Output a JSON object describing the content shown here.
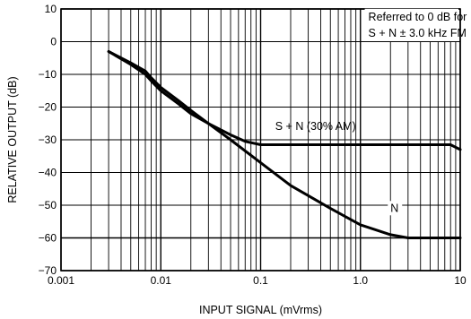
{
  "chart_data": {
    "type": "line",
    "title": "",
    "xlabel": "INPUT SIGNAL (mVrms)",
    "ylabel": "RELATIVE OUTPUT (dB)",
    "x_scale": "log",
    "xlim": [
      0.001,
      10
    ],
    "ylim": [
      -70,
      10
    ],
    "x_ticks": [
      0.001,
      0.01,
      0.1,
      1.0,
      10
    ],
    "x_tick_labels": [
      "0.001",
      "0.01",
      "0.1",
      "1.0",
      "10"
    ],
    "y_ticks": [
      10,
      0,
      -10,
      -20,
      -30,
      -40,
      -50,
      -60,
      -70
    ],
    "y_tick_labels": [
      "10",
      "0",
      "−10",
      "−20",
      "−30",
      "−40",
      "−50",
      "−60",
      "−70"
    ],
    "grid": true,
    "series": [
      {
        "name": "S + N (30% AM)",
        "x": [
          0.003,
          0.005,
          0.007,
          0.008,
          0.01,
          0.015,
          0.02,
          0.03,
          0.05,
          0.07,
          0.1,
          0.2,
          0.5,
          1.0,
          2.0,
          5.0,
          8.0,
          10
        ],
        "y": [
          -3,
          -7,
          -10,
          -12,
          -15,
          -19,
          -22,
          -25,
          -28.5,
          -30.5,
          -31.5,
          -31.5,
          -31.5,
          -31.5,
          -31.5,
          -31.5,
          -31.5,
          -33
        ]
      },
      {
        "name": "N",
        "x": [
          0.003,
          0.005,
          0.007,
          0.008,
          0.01,
          0.015,
          0.02,
          0.03,
          0.05,
          0.1,
          0.2,
          0.5,
          1.0,
          2.0,
          3.0,
          5.0,
          10
        ],
        "y": [
          -3,
          -6.5,
          -9,
          -11,
          -14,
          -18,
          -21,
          -25,
          -30,
          -37,
          -44,
          -51,
          -56,
          -59,
          -60,
          -60,
          -60
        ]
      }
    ],
    "annotations": [
      {
        "text": "Referred to 0 dB for",
        "x": 1.2,
        "y": 6.5
      },
      {
        "text": "S + N ± 3.0 kHz FM",
        "x": 1.2,
        "y": 1.5
      },
      {
        "text": "S + N (30% AM)",
        "x": 0.14,
        "y": -27
      },
      {
        "text": "N",
        "x": 2.0,
        "y": -52
      }
    ]
  }
}
